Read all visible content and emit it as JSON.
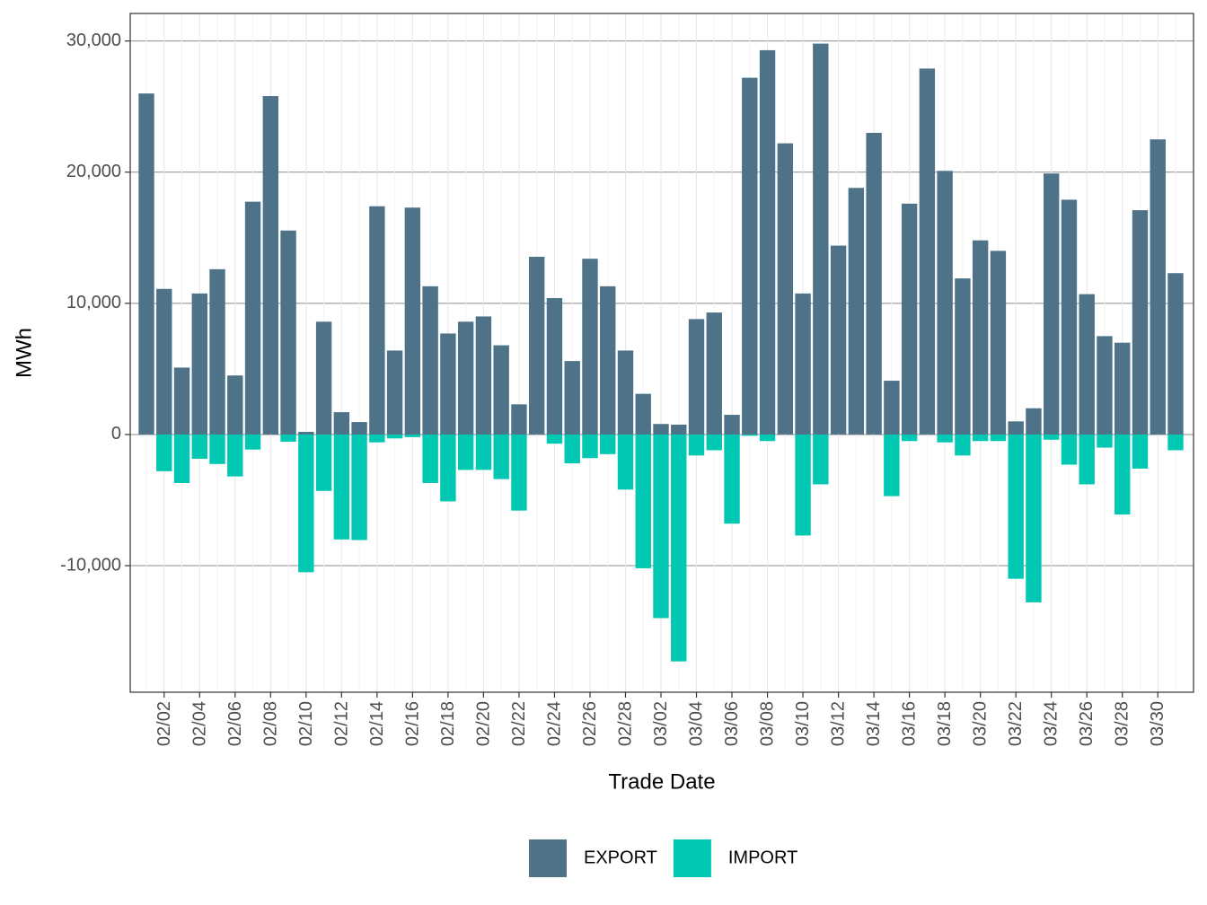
{
  "chart_data": {
    "type": "bar",
    "stacked": true,
    "x_label": "Trade Date",
    "y_label": "MWh",
    "categories": [
      null,
      "02/02",
      null,
      "02/04",
      null,
      "02/06",
      null,
      "02/08",
      null,
      "02/10",
      null,
      "02/12",
      null,
      "02/14",
      null,
      "02/16",
      null,
      "02/18",
      null,
      "02/20",
      null,
      "02/22",
      null,
      "02/24",
      null,
      "02/26",
      null,
      "02/28",
      null,
      "03/02",
      null,
      "03/04",
      null,
      "03/06",
      null,
      "03/08",
      null,
      "03/10",
      null,
      "03/12",
      null,
      "03/14",
      null,
      "03/16",
      null,
      "03/18",
      null,
      "03/20",
      null,
      "03/22",
      null,
      "03/24",
      null,
      "03/26",
      null,
      "03/28",
      null,
      "03/30",
      null
    ],
    "series": [
      {
        "name": "EXPORT",
        "color": "#4e7389",
        "values": [
          26000,
          11100,
          5100,
          10750,
          12600,
          4500,
          17750,
          25800,
          15550,
          200,
          8600,
          1700,
          950,
          17400,
          6400,
          17300,
          11300,
          7700,
          8600,
          9000,
          6800,
          2300,
          13550,
          10400,
          5600,
          13400,
          11300,
          6400,
          3100,
          800,
          750,
          8800,
          9300,
          1500,
          27200,
          29300,
          22200,
          10750,
          29800,
          14400,
          18800,
          23000,
          4100,
          17600,
          27900,
          20100,
          11900,
          14800,
          14000,
          1000,
          2000,
          19900,
          17900,
          10700,
          7500,
          7000,
          17100,
          22500,
          12300
        ]
      },
      {
        "name": "IMPORT",
        "color": "#00c8b2",
        "values": [
          0,
          -2800,
          -3700,
          -1850,
          -2250,
          -3200,
          -1150,
          0,
          -550,
          -10500,
          -4300,
          -8000,
          -8050,
          -600,
          -300,
          -200,
          -3700,
          -5100,
          -2700,
          -2700,
          -3400,
          -5800,
          0,
          -700,
          -2200,
          -1800,
          -1500,
          -4200,
          -10200,
          -14000,
          -17300,
          -1600,
          -1200,
          -6800,
          -100,
          -500,
          0,
          -7700,
          -3800,
          0,
          0,
          0,
          -4700,
          -500,
          0,
          -600,
          -1600,
          -500,
          -500,
          -11000,
          -12800,
          -400,
          -2300,
          -3800,
          -1000,
          -6100,
          -2600,
          0,
          -1200
        ]
      }
    ],
    "ylim": [
      -19650,
      32100
    ],
    "yticks": [
      {
        "value": -10000,
        "label": "-10,000"
      },
      0,
      {
        "value": 10000,
        "label": "10,000"
      },
      {
        "value": 20000,
        "label": "20,000"
      },
      {
        "value": 30000,
        "label": "30,000"
      }
    ],
    "grid": true,
    "legend": "bottom"
  }
}
